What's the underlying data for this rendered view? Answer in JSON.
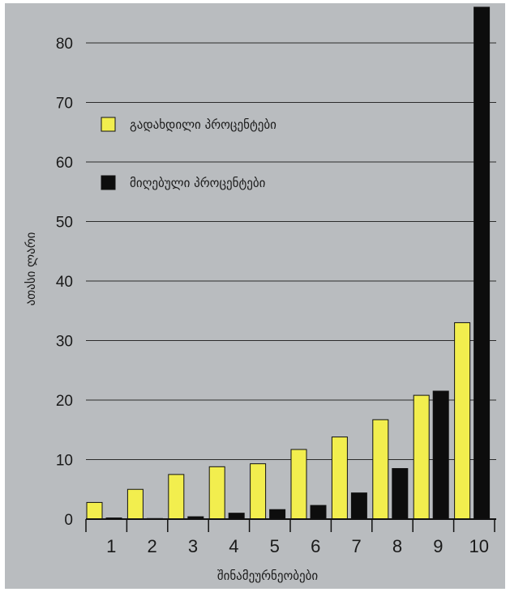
{
  "chart_data": {
    "type": "bar",
    "categories": [
      "1",
      "2",
      "3",
      "4",
      "5",
      "6",
      "7",
      "8",
      "9",
      "10"
    ],
    "series": [
      {
        "name": "გადახდილი პროცენტები",
        "color": "#f2ee4e",
        "values": [
          2.8,
          5,
          7.5,
          8.8,
          9.3,
          11.7,
          13.8,
          16.7,
          20.8,
          33
        ]
      },
      {
        "name": "მიღებული პროცენტები",
        "color": "#0d0d0d",
        "values": [
          0.2,
          0.1,
          0.4,
          1,
          1.6,
          2.3,
          4.4,
          8.5,
          21.5,
          86
        ]
      }
    ],
    "yticks": [
      0,
      10,
      20,
      30,
      40,
      50,
      60,
      70,
      80
    ],
    "ylim": [
      0,
      86
    ],
    "ylabel": "ათასი ლარი",
    "xlabel": "შინამეურნეობები",
    "grid": true,
    "legend_position": "top-left"
  }
}
